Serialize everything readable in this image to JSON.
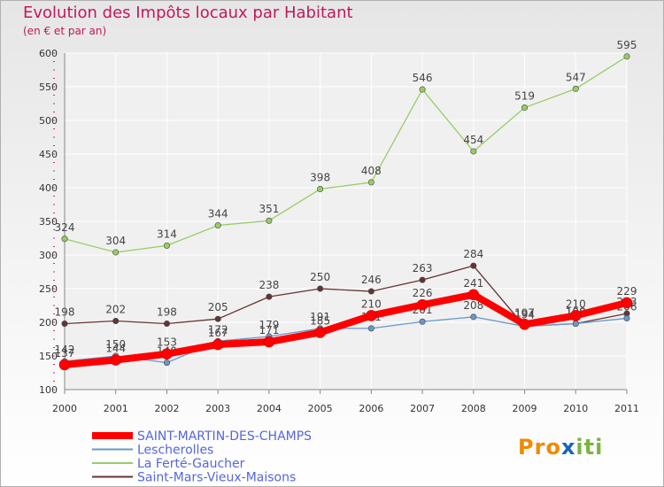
{
  "title": "Evolution des Impôts locaux par Habitant",
  "subtitle": "(en € et par an)",
  "logo": {
    "text": "Proxiti",
    "letters": [
      "P",
      "r",
      "o",
      "x",
      "i",
      "t",
      "i"
    ],
    "colors": [
      "#f08a00",
      "#f08a00",
      "#f08a00",
      "#1565c0",
      "#7cb342",
      "#7cb342",
      "#7cb342"
    ]
  },
  "chart_data": {
    "type": "line",
    "x": [
      "2000",
      "2001",
      "2002",
      "2003",
      "2004",
      "2005",
      "2006",
      "2007",
      "2008",
      "2009",
      "2010",
      "2011"
    ],
    "ylim": [
      100,
      600
    ],
    "yticks": [
      "100",
      "150",
      "200",
      "250",
      "300",
      "350",
      "400",
      "450",
      "500",
      "550",
      "600"
    ],
    "grid": true,
    "legend_placement": "bottom-left",
    "series": [
      {
        "name": "SAINT-MARTIN-DES-CHAMPS",
        "color": "#ff0000",
        "values": [
          137,
          144,
          153,
          167,
          171,
          185,
          210,
          226,
          241,
          197,
          210,
          229
        ],
        "labels": [
          "137",
          "144",
          "153",
          "167",
          "171",
          "185",
          "210",
          "226",
          "241",
          "197",
          "210",
          "229"
        ]
      },
      {
        "name": "Lescherolles",
        "color": "#6699cc",
        "values": [
          142,
          150,
          140,
          172,
          179,
          191,
          191,
          201,
          208,
          194,
          198,
          206
        ],
        "labels": [
          "142",
          "150",
          "140",
          "172",
          "179",
          "191",
          "191",
          "201",
          "208",
          "194",
          "198",
          "206"
        ]
      },
      {
        "name": "La Ferté-Gaucher",
        "color": "#99cc66",
        "values": [
          324,
          304,
          314,
          344,
          351,
          398,
          408,
          546,
          454,
          519,
          547,
          595
        ],
        "labels": [
          "324",
          "304",
          "314",
          "344",
          "351",
          "398",
          "408",
          "546",
          "454",
          "519",
          "547",
          "595"
        ]
      },
      {
        "name": "Saint-Mars-Vieux-Maisons",
        "color": "#663333",
        "values": [
          198,
          202,
          198,
          205,
          238,
          250,
          246,
          263,
          284,
          194,
          198,
          213
        ],
        "labels": [
          "198",
          "202",
          "198",
          "205",
          "238",
          "250",
          "246",
          "263",
          "284",
          "194",
          "198",
          "213"
        ]
      }
    ]
  }
}
